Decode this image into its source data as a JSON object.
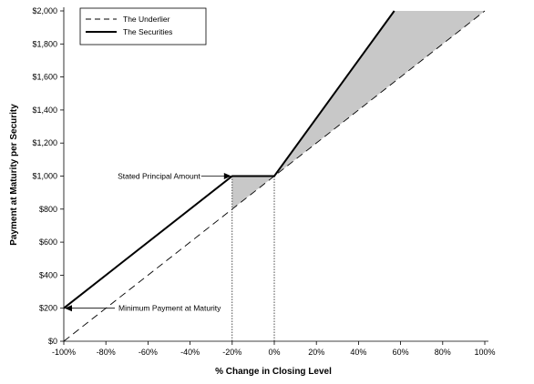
{
  "chart_data": {
    "type": "line",
    "xlabel": "% Change in Closing Level",
    "ylabel": "Payment at Maturity per Security",
    "xlim": [
      -100,
      100
    ],
    "ylim": [
      0,
      2000
    ],
    "x_ticks": [
      -100,
      -80,
      -60,
      -40,
      -20,
      0,
      20,
      40,
      60,
      80,
      100
    ],
    "x_tick_labels": [
      "-100%",
      "-80%",
      "-60%",
      "-40%",
      "-20%",
      "0%",
      "20%",
      "40%",
      "60%",
      "80%",
      "100%"
    ],
    "y_ticks": [
      0,
      200,
      400,
      600,
      800,
      1000,
      1200,
      1400,
      1600,
      1800,
      2000
    ],
    "y_tick_labels": [
      "$0",
      "$200",
      "$400",
      "$600",
      "$800",
      "$1,000",
      "$1,200",
      "$1,400",
      "$1,600",
      "$1,800",
      "$2,000"
    ],
    "series": [
      {
        "name": "The Underlier",
        "style": "dashed",
        "color": "#000000",
        "x": [
          -100,
          100
        ],
        "y": [
          0,
          2000
        ]
      },
      {
        "name": "The Securities",
        "style": "solid",
        "color": "#000000",
        "x": [
          -100,
          -20,
          0,
          57
        ],
        "y": [
          200,
          1000,
          1000,
          2000
        ]
      }
    ],
    "shaded_regions": [
      {
        "fill": "#c8c8c8",
        "x": [
          -20,
          -20,
          0
        ],
        "y": [
          800,
          1000,
          1000
        ]
      },
      {
        "fill": "#c8c8c8",
        "x": [
          0,
          57,
          103,
          100
        ],
        "y": [
          1000,
          2000,
          2000,
          2000
        ]
      }
    ],
    "reference_lines": [
      {
        "x": -20,
        "style": "dotted"
      },
      {
        "x": 0,
        "style": "dotted"
      }
    ],
    "annotations": [
      {
        "text": "Stated Principal Amount",
        "points_to": {
          "x": -20,
          "y": 1000
        }
      },
      {
        "text": "Minimum Payment at Maturity",
        "points_to": {
          "x": -100,
          "y": 200
        }
      }
    ],
    "legend_placement": "top-left",
    "grid": false
  }
}
